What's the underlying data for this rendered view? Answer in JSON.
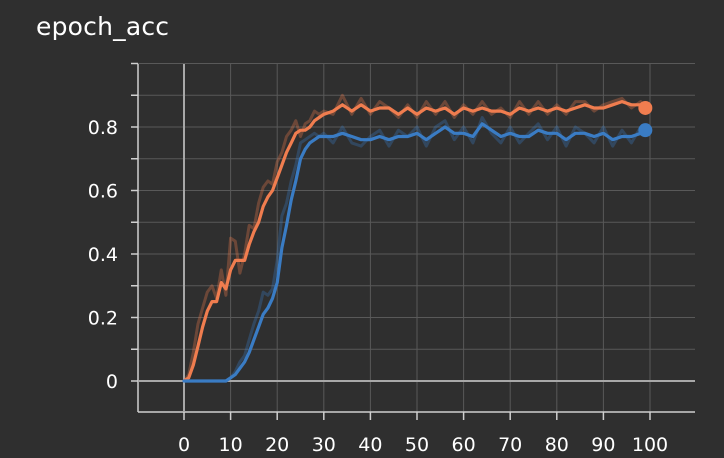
{
  "chart_data": {
    "type": "line",
    "title": "epoch_acc",
    "xlabel": "",
    "ylabel": "",
    "xlim": [
      -10,
      110
    ],
    "ylim": [
      -0.1,
      1.0
    ],
    "x_ticks": [
      0,
      10,
      20,
      30,
      40,
      50,
      60,
      70,
      80,
      90,
      100
    ],
    "y_ticks": [
      0,
      0.2,
      0.4,
      0.6,
      0.8
    ],
    "grid": true,
    "legend": "none",
    "series": [
      {
        "color": "#f07d4f",
        "smoothed": [
          [
            0,
            0
          ],
          [
            1,
            0.01
          ],
          [
            2,
            0.05
          ],
          [
            3,
            0.11
          ],
          [
            4,
            0.17
          ],
          [
            5,
            0.22
          ],
          [
            6,
            0.25
          ],
          [
            7,
            0.25
          ],
          [
            8,
            0.31
          ],
          [
            9,
            0.29
          ],
          [
            10,
            0.35
          ],
          [
            11,
            0.38
          ],
          [
            12,
            0.38
          ],
          [
            13,
            0.38
          ],
          [
            14,
            0.43
          ],
          [
            15,
            0.47
          ],
          [
            16,
            0.5
          ],
          [
            17,
            0.55
          ],
          [
            18,
            0.58
          ],
          [
            19,
            0.6
          ],
          [
            20,
            0.64
          ],
          [
            21,
            0.68
          ],
          [
            22,
            0.72
          ],
          [
            23,
            0.75
          ],
          [
            24,
            0.78
          ],
          [
            25,
            0.79
          ],
          [
            26,
            0.79
          ],
          [
            27,
            0.8
          ],
          [
            28,
            0.82
          ],
          [
            29,
            0.83
          ],
          [
            30,
            0.84
          ],
          [
            32,
            0.85
          ],
          [
            34,
            0.87
          ],
          [
            36,
            0.85
          ],
          [
            38,
            0.87
          ],
          [
            40,
            0.85
          ],
          [
            42,
            0.86
          ],
          [
            44,
            0.86
          ],
          [
            46,
            0.84
          ],
          [
            48,
            0.86
          ],
          [
            50,
            0.84
          ],
          [
            52,
            0.86
          ],
          [
            54,
            0.85
          ],
          [
            56,
            0.86
          ],
          [
            58,
            0.84
          ],
          [
            60,
            0.86
          ],
          [
            62,
            0.85
          ],
          [
            64,
            0.86
          ],
          [
            66,
            0.85
          ],
          [
            68,
            0.85
          ],
          [
            70,
            0.84
          ],
          [
            72,
            0.86
          ],
          [
            74,
            0.85
          ],
          [
            76,
            0.86
          ],
          [
            78,
            0.85
          ],
          [
            80,
            0.86
          ],
          [
            82,
            0.85
          ],
          [
            84,
            0.86
          ],
          [
            86,
            0.87
          ],
          [
            88,
            0.86
          ],
          [
            90,
            0.86
          ],
          [
            92,
            0.87
          ],
          [
            94,
            0.88
          ],
          [
            96,
            0.87
          ],
          [
            98,
            0.87
          ],
          [
            99,
            0.86
          ]
        ],
        "raw": [
          [
            0,
            0
          ],
          [
            1,
            0.02
          ],
          [
            2,
            0.09
          ],
          [
            3,
            0.18
          ],
          [
            4,
            0.23
          ],
          [
            5,
            0.28
          ],
          [
            6,
            0.3
          ],
          [
            7,
            0.26
          ],
          [
            8,
            0.35
          ],
          [
            9,
            0.27
          ],
          [
            10,
            0.45
          ],
          [
            11,
            0.44
          ],
          [
            12,
            0.34
          ],
          [
            13,
            0.4
          ],
          [
            14,
            0.49
          ],
          [
            15,
            0.48
          ],
          [
            16,
            0.56
          ],
          [
            17,
            0.61
          ],
          [
            18,
            0.63
          ],
          [
            19,
            0.62
          ],
          [
            20,
            0.69
          ],
          [
            21,
            0.72
          ],
          [
            22,
            0.77
          ],
          [
            23,
            0.79
          ],
          [
            24,
            0.82
          ],
          [
            25,
            0.77
          ],
          [
            26,
            0.81
          ],
          [
            27,
            0.82
          ],
          [
            28,
            0.85
          ],
          [
            29,
            0.84
          ],
          [
            30,
            0.85
          ],
          [
            32,
            0.84
          ],
          [
            34,
            0.9
          ],
          [
            36,
            0.84
          ],
          [
            38,
            0.89
          ],
          [
            40,
            0.84
          ],
          [
            42,
            0.88
          ],
          [
            44,
            0.86
          ],
          [
            46,
            0.83
          ],
          [
            48,
            0.87
          ],
          [
            50,
            0.83
          ],
          [
            52,
            0.88
          ],
          [
            54,
            0.84
          ],
          [
            56,
            0.88
          ],
          [
            58,
            0.83
          ],
          [
            60,
            0.87
          ],
          [
            62,
            0.84
          ],
          [
            64,
            0.88
          ],
          [
            66,
            0.84
          ],
          [
            68,
            0.86
          ],
          [
            70,
            0.83
          ],
          [
            72,
            0.88
          ],
          [
            74,
            0.84
          ],
          [
            76,
            0.88
          ],
          [
            78,
            0.84
          ],
          [
            80,
            0.87
          ],
          [
            82,
            0.84
          ],
          [
            84,
            0.88
          ],
          [
            86,
            0.88
          ],
          [
            88,
            0.85
          ],
          [
            90,
            0.87
          ],
          [
            92,
            0.88
          ],
          [
            94,
            0.89
          ],
          [
            96,
            0.86
          ],
          [
            98,
            0.88
          ],
          [
            99,
            0.86
          ]
        ]
      },
      {
        "color": "#3a7cc4",
        "smoothed": [
          [
            0,
            0
          ],
          [
            2,
            0
          ],
          [
            4,
            0
          ],
          [
            6,
            0
          ],
          [
            8,
            0
          ],
          [
            9,
            0
          ],
          [
            10,
            0.01
          ],
          [
            11,
            0.02
          ],
          [
            12,
            0.04
          ],
          [
            13,
            0.06
          ],
          [
            14,
            0.09
          ],
          [
            15,
            0.13
          ],
          [
            16,
            0.17
          ],
          [
            17,
            0.21
          ],
          [
            18,
            0.23
          ],
          [
            19,
            0.26
          ],
          [
            20,
            0.31
          ],
          [
            21,
            0.42
          ],
          [
            22,
            0.49
          ],
          [
            23,
            0.57
          ],
          [
            24,
            0.63
          ],
          [
            25,
            0.7
          ],
          [
            26,
            0.73
          ],
          [
            27,
            0.75
          ],
          [
            28,
            0.76
          ],
          [
            29,
            0.77
          ],
          [
            30,
            0.77
          ],
          [
            32,
            0.77
          ],
          [
            34,
            0.78
          ],
          [
            36,
            0.77
          ],
          [
            38,
            0.76
          ],
          [
            40,
            0.76
          ],
          [
            42,
            0.77
          ],
          [
            44,
            0.76
          ],
          [
            46,
            0.77
          ],
          [
            48,
            0.77
          ],
          [
            50,
            0.78
          ],
          [
            52,
            0.76
          ],
          [
            54,
            0.78
          ],
          [
            56,
            0.8
          ],
          [
            58,
            0.78
          ],
          [
            60,
            0.78
          ],
          [
            62,
            0.77
          ],
          [
            64,
            0.81
          ],
          [
            66,
            0.79
          ],
          [
            68,
            0.77
          ],
          [
            70,
            0.78
          ],
          [
            72,
            0.77
          ],
          [
            74,
            0.77
          ],
          [
            76,
            0.79
          ],
          [
            78,
            0.78
          ],
          [
            80,
            0.78
          ],
          [
            82,
            0.76
          ],
          [
            84,
            0.78
          ],
          [
            86,
            0.78
          ],
          [
            88,
            0.77
          ],
          [
            90,
            0.78
          ],
          [
            92,
            0.76
          ],
          [
            94,
            0.77
          ],
          [
            96,
            0.77
          ],
          [
            98,
            0.78
          ],
          [
            99,
            0.79
          ]
        ],
        "raw": [
          [
            0,
            0
          ],
          [
            2,
            0
          ],
          [
            4,
            0
          ],
          [
            6,
            0
          ],
          [
            8,
            0
          ],
          [
            9,
            0
          ],
          [
            10,
            0.01
          ],
          [
            11,
            0.03
          ],
          [
            12,
            0.06
          ],
          [
            13,
            0.08
          ],
          [
            14,
            0.13
          ],
          [
            15,
            0.18
          ],
          [
            16,
            0.22
          ],
          [
            17,
            0.28
          ],
          [
            18,
            0.27
          ],
          [
            19,
            0.29
          ],
          [
            20,
            0.38
          ],
          [
            21,
            0.52
          ],
          [
            22,
            0.56
          ],
          [
            23,
            0.63
          ],
          [
            24,
            0.68
          ],
          [
            25,
            0.75
          ],
          [
            26,
            0.76
          ],
          [
            27,
            0.77
          ],
          [
            28,
            0.78
          ],
          [
            29,
            0.77
          ],
          [
            30,
            0.78
          ],
          [
            32,
            0.75
          ],
          [
            34,
            0.8
          ],
          [
            36,
            0.75
          ],
          [
            38,
            0.74
          ],
          [
            40,
            0.77
          ],
          [
            42,
            0.79
          ],
          [
            44,
            0.74
          ],
          [
            46,
            0.79
          ],
          [
            48,
            0.77
          ],
          [
            50,
            0.8
          ],
          [
            52,
            0.74
          ],
          [
            54,
            0.8
          ],
          [
            56,
            0.82
          ],
          [
            58,
            0.76
          ],
          [
            60,
            0.8
          ],
          [
            62,
            0.75
          ],
          [
            64,
            0.83
          ],
          [
            66,
            0.78
          ],
          [
            68,
            0.75
          ],
          [
            70,
            0.8
          ],
          [
            72,
            0.75
          ],
          [
            74,
            0.78
          ],
          [
            76,
            0.81
          ],
          [
            78,
            0.76
          ],
          [
            80,
            0.8
          ],
          [
            82,
            0.74
          ],
          [
            84,
            0.8
          ],
          [
            86,
            0.78
          ],
          [
            88,
            0.75
          ],
          [
            90,
            0.8
          ],
          [
            92,
            0.74
          ],
          [
            94,
            0.79
          ],
          [
            96,
            0.75
          ],
          [
            98,
            0.8
          ],
          [
            99,
            0.79
          ]
        ]
      }
    ]
  }
}
